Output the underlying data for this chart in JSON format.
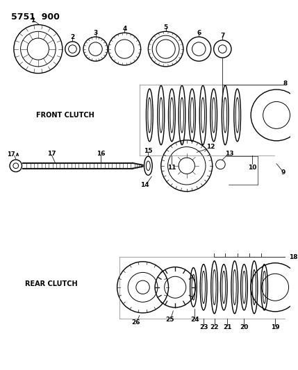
{
  "title": "5751  900",
  "bg_color": "#ffffff",
  "line_color": "#1a1a1a",
  "text_color": "#000000",
  "title_fontsize": 9,
  "annotation_fontsize": 6.5,
  "front_clutch_label": "FRONT CLUTCH",
  "rear_clutch_label": "REAR CLUTCH"
}
